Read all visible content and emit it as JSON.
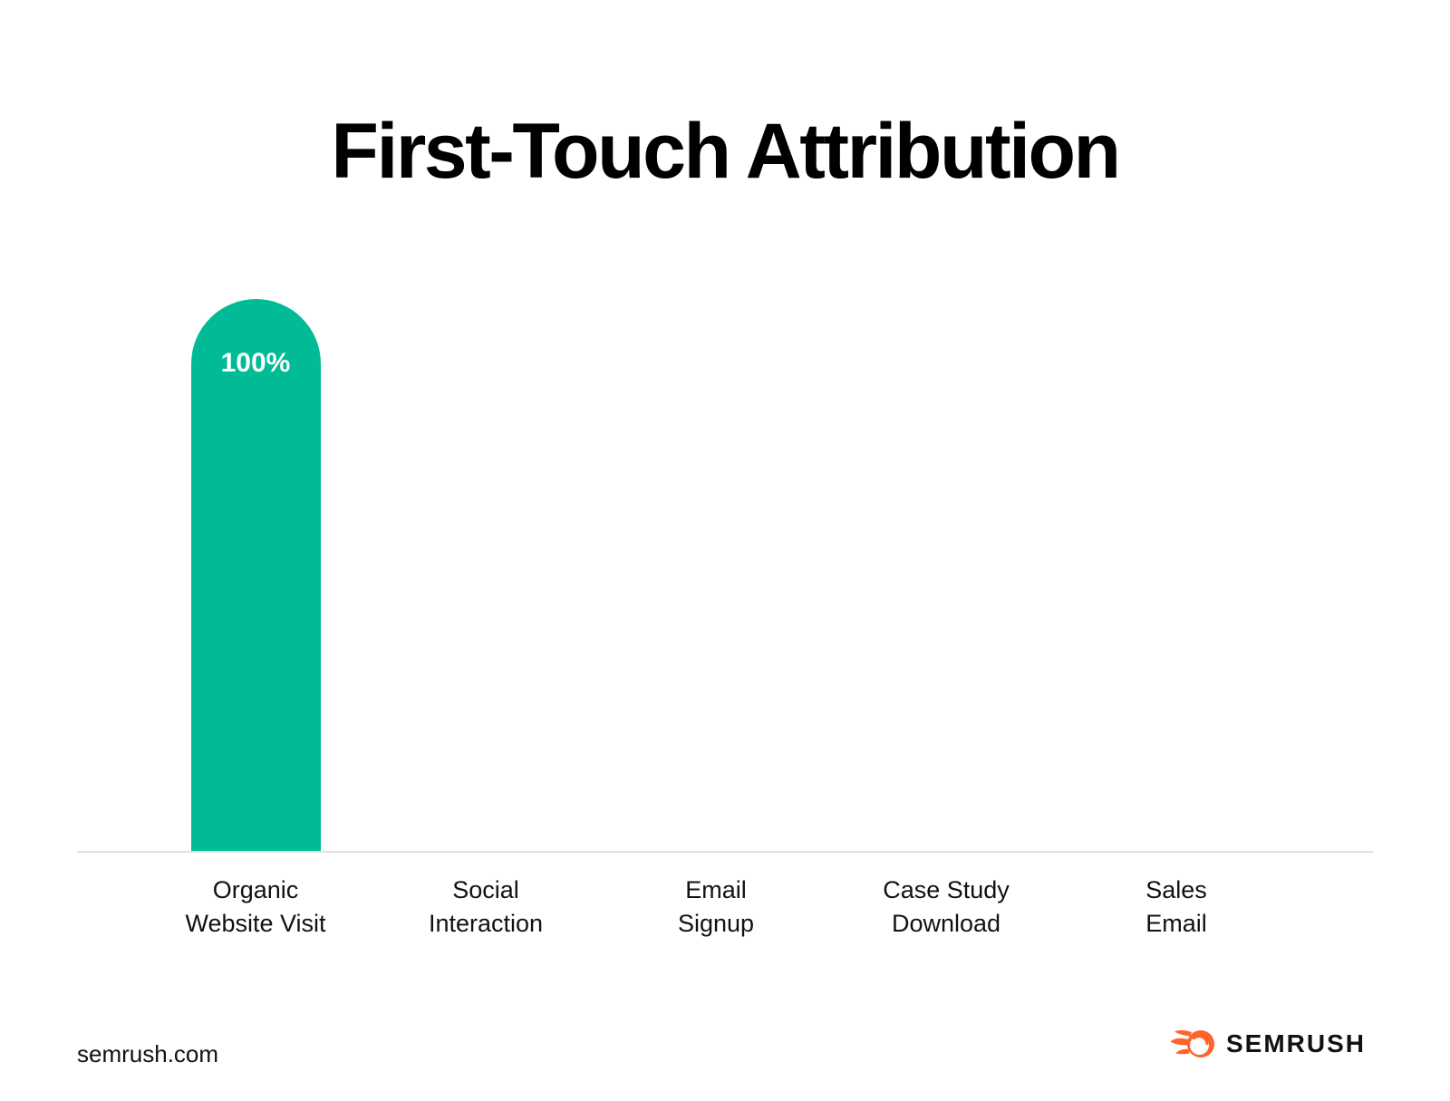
{
  "page": {
    "background": "#ffffff",
    "footer": {
      "website": "semrush.com",
      "brand": "SEMRUSH",
      "brand_orange": "#FF642D"
    }
  },
  "chart_data": {
    "type": "bar",
    "title": "First-Touch Attribution",
    "categories": [
      {
        "line1": "Organic",
        "line2": "Website Visit",
        "value": 100,
        "value_label": "100%"
      },
      {
        "line1": "Social",
        "line2": "Interaction",
        "value": 0
      },
      {
        "line1": "Email",
        "line2": "Signup",
        "value": 0
      },
      {
        "line1": "Case Study",
        "line2": "Download",
        "value": 0
      },
      {
        "line1": "Sales",
        "line2": "Email",
        "value": 0
      }
    ],
    "ylim": [
      0,
      100
    ],
    "bar_color": "#00BB95",
    "value_label_color": "#ffffff",
    "axis_line_color": "#E0E0E0",
    "grid": false,
    "legend": false,
    "xlabel": "",
    "ylabel": ""
  }
}
